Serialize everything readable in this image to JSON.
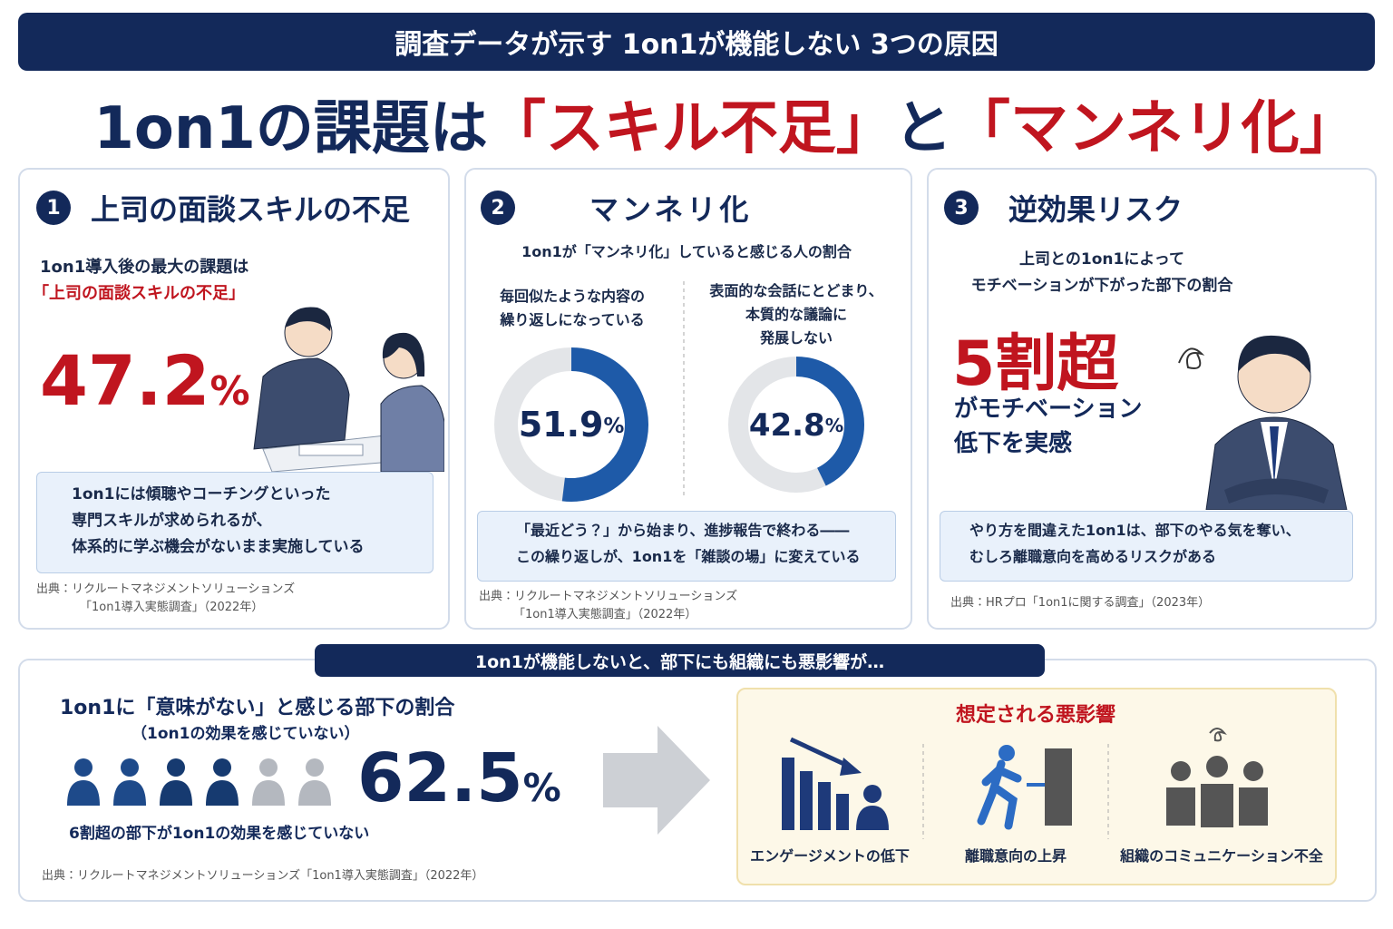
{
  "header": {
    "banner": "調査データが示す 1on1が機能しない 3つの原因",
    "title_parts": [
      "1on1の課題は",
      "「スキル不足」",
      "と",
      "「マンネリ化」"
    ]
  },
  "cards": [
    {
      "number": "1",
      "title": "上司の面談スキルの不足",
      "lead": "1on1導入後の最大の課題は",
      "highlight": "「上司の面談スキルの不足」",
      "stat": {
        "value": 47.2,
        "unit": "%"
      },
      "note_lines": [
        "1on1には傾聴やコーチングといった",
        "専門スキルが求められるが、",
        "体系的に学ぶ機会がないまま実施している"
      ],
      "source_lines": [
        "出典：リクルートマネジメントソリューションズ",
        "「1on1導入実態調査」（2022年）"
      ]
    },
    {
      "number": "2",
      "title": "マンネリ化",
      "subtitle": "1on1が「マンネリ化」していると感じる人の割合",
      "donuts": [
        {
          "label_lines": [
            "毎回似たような内容の",
            "繰り返しになっている"
          ],
          "value": 51.9,
          "unit": "%"
        },
        {
          "label_lines": [
            "表面的な会話にとどまり、",
            "本質的な議論に",
            "発展しない"
          ],
          "value": 42.8,
          "unit": "%"
        }
      ],
      "note_lines": [
        "「最近どう？」から始まり、進捗報告で終わる――",
        "この繰り返しが、1on1を「雑談の場」に変えている"
      ],
      "source_lines": [
        "出典：リクルートマネジメントソリューションズ",
        "「1on1導入実態調査」（2022年）"
      ]
    },
    {
      "number": "3",
      "title": "逆効果リスク",
      "lead_lines": [
        "上司との1on1によって",
        "モチベーションが下がった部下の割合"
      ],
      "big": "5割超",
      "after_lines": [
        "がモチベーション",
        "低下を実感"
      ],
      "note_lines": [
        "やり方を間違えた1on1は、部下のやる気を奪い、",
        "むしろ離職意向を高めるリスクがある"
      ],
      "source": "出典：HRプロ「1on1に関する調査」（2023年）"
    }
  ],
  "bottom": {
    "banner": "1on1が機能しないと、部下にも組織にも悪影響が…",
    "heading": "1on1に「意味がない」と感じる部下の割合",
    "subheading": "（1on1の効果を感じていない）",
    "stat": {
      "value": 62.5,
      "unit": "%"
    },
    "caption": "6割超の部下が1on1の効果を感じていない",
    "source": "出典：リクルートマネジメントソリューションズ「1on1導入実態調査」（2022年）",
    "effects_title": "想定される悪影響",
    "effects": [
      "エンゲージメントの低下",
      "離職意向の上昇",
      "組織のコミュニケーション不全"
    ]
  }
}
